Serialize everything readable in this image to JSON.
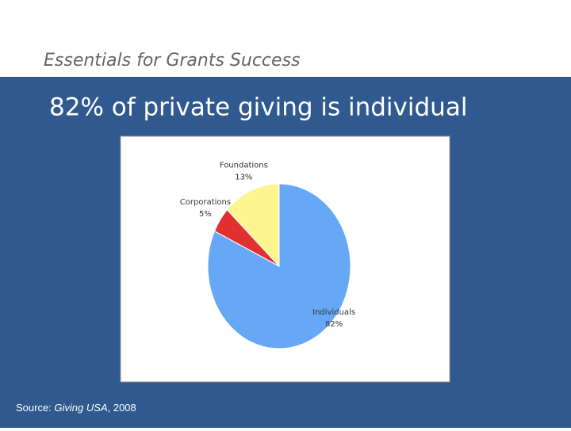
{
  "header": "Essentials for Grants Success",
  "title": "82% of private giving is individual",
  "source": {
    "prefix": "Source: ",
    "italic": "Giving USA",
    "suffix": ", 2008"
  },
  "chart_data": {
    "type": "pie",
    "categories": [
      "Individuals",
      "Corporations",
      "Foundations"
    ],
    "values": [
      82,
      5,
      13
    ],
    "value_labels": [
      "82%",
      "5%",
      "13%"
    ],
    "colors": [
      "#66a8f5",
      "#e03030",
      "#fff590"
    ]
  }
}
